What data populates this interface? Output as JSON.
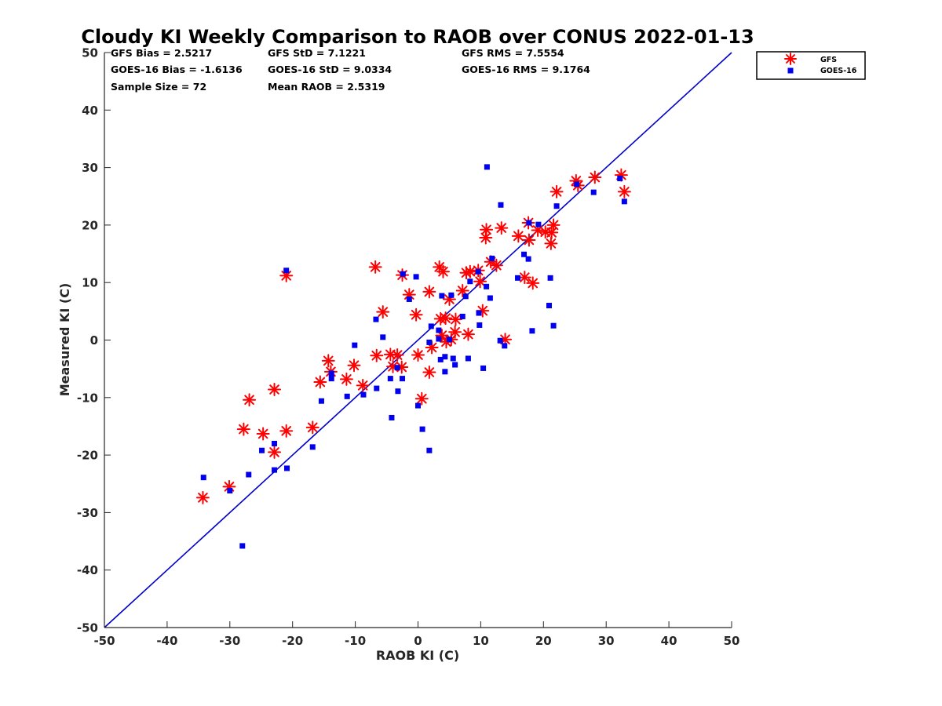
{
  "chart_data": {
    "type": "scatter",
    "title": "Cloudy KI Weekly Comparison to RAOB over CONUS 2022-01-13",
    "xlabel": "RAOB KI (C)",
    "ylabel": "Measured KI (C)",
    "xlim": [
      -50,
      50
    ],
    "ylim": [
      -50,
      50
    ],
    "xticks": [
      -50,
      -40,
      -30,
      -20,
      -10,
      0,
      10,
      20,
      30,
      40,
      50
    ],
    "yticks": [
      -50,
      -40,
      -30,
      -20,
      -10,
      0,
      10,
      20,
      30,
      40,
      50
    ],
    "reference_line": {
      "name": "1:1 line",
      "x": [
        -50,
        50
      ],
      "y": [
        -50,
        50
      ],
      "color": "#0000cc"
    },
    "stats": {
      "gfs_bias": "GFS Bias = 2.5217",
      "goes_bias": "GOES-16 Bias = -1.6136",
      "sample_size": "Sample Size = 72",
      "gfs_std": "GFS StD = 7.1221",
      "goes_std": "GOES-16 StD = 9.0334",
      "mean_raob": "Mean RAOB = 2.5319",
      "gfs_rms": "GFS RMS = 7.5554",
      "goes_rms": "GOES-16 RMS = 9.1764"
    },
    "legend": {
      "placement": "top-right",
      "entries": [
        "GFS",
        "GOES-16"
      ]
    },
    "series": [
      {
        "name": "GFS",
        "marker": "asterisk",
        "color": "#ff0000",
        "points": [
          [
            -34.3,
            -27.4
          ],
          [
            -30.1,
            -25.5
          ],
          [
            -27.8,
            -15.5
          ],
          [
            -26.9,
            -10.4
          ],
          [
            -24.7,
            -16.3
          ],
          [
            -22.9,
            -8.6
          ],
          [
            -22.9,
            -19.5
          ],
          [
            -21,
            -15.8
          ],
          [
            -21,
            11.2
          ],
          [
            -16.8,
            -15.2
          ],
          [
            -15.6,
            -7.3
          ],
          [
            -14.3,
            -3.6
          ],
          [
            -13.9,
            -5.5
          ],
          [
            -11.4,
            -6.8
          ],
          [
            -10.2,
            -4.4
          ],
          [
            -8.8,
            -7.9
          ],
          [
            -6.8,
            12.7
          ],
          [
            -6.6,
            -2.7
          ],
          [
            -5.6,
            4.9
          ],
          [
            -4.4,
            -2.5
          ],
          [
            -4,
            -4.6
          ],
          [
            -3.3,
            -2.6
          ],
          [
            -2.6,
            -4.7
          ],
          [
            -2.5,
            11.3
          ],
          [
            -1.4,
            7.9
          ],
          [
            -0.3,
            4.4
          ],
          [
            0,
            -2.6
          ],
          [
            0.6,
            -10.2
          ],
          [
            1.8,
            8.4
          ],
          [
            1.8,
            -5.6
          ],
          [
            2.2,
            -1.3
          ],
          [
            3.4,
            12.7
          ],
          [
            3.6,
            3.7
          ],
          [
            3.8,
            0.8
          ],
          [
            4,
            11.9
          ],
          [
            4.4,
            3.8
          ],
          [
            4.5,
            -0.3
          ],
          [
            5,
            7.1
          ],
          [
            5.3,
            0.1
          ],
          [
            5.9,
            1.4
          ],
          [
            6,
            3.6
          ],
          [
            7.1,
            8.6
          ],
          [
            7.7,
            11.7
          ],
          [
            8,
            1
          ],
          [
            8.3,
            11.9
          ],
          [
            9.6,
            12.1
          ],
          [
            9.9,
            10.2
          ],
          [
            10.3,
            5.1
          ],
          [
            10.8,
            17.8
          ],
          [
            10.9,
            19.2
          ],
          [
            11.6,
            13.6
          ],
          [
            12.5,
            13
          ],
          [
            13.3,
            19.5
          ],
          [
            13.9,
            0.1
          ],
          [
            16,
            18.1
          ],
          [
            17,
            10.9
          ],
          [
            17.6,
            20.4
          ],
          [
            17.7,
            17.4
          ],
          [
            18.3,
            9.9
          ],
          [
            19.1,
            19.1
          ],
          [
            20.3,
            18.8
          ],
          [
            21.2,
            16.8
          ],
          [
            21.3,
            18.7
          ],
          [
            21.6,
            20
          ],
          [
            22.1,
            25.8
          ],
          [
            25.2,
            27.7
          ],
          [
            25.5,
            26.9
          ],
          [
            28.2,
            28.3
          ],
          [
            32.4,
            28.7
          ],
          [
            32.9,
            25.8
          ]
        ]
      },
      {
        "name": "GOES-16",
        "marker": "square",
        "color": "#0000ee",
        "points": [
          [
            -34.2,
            -23.9
          ],
          [
            -30,
            -26.2
          ],
          [
            -28,
            -35.8
          ],
          [
            -27,
            -23.4
          ],
          [
            -24.9,
            -19.2
          ],
          [
            -22.9,
            -22.6
          ],
          [
            -22.9,
            -18
          ],
          [
            -21,
            12.1
          ],
          [
            -20.9,
            -22.3
          ],
          [
            -16.8,
            -18.6
          ],
          [
            -15.4,
            -10.6
          ],
          [
            -13.8,
            -6.7
          ],
          [
            -13.8,
            -5.8
          ],
          [
            -11.3,
            -9.8
          ],
          [
            -10.1,
            -0.9
          ],
          [
            -8.7,
            -9.5
          ],
          [
            -6.7,
            3.6
          ],
          [
            -6.6,
            -8.4
          ],
          [
            -5.6,
            0.5
          ],
          [
            -4.4,
            -6.7
          ],
          [
            -4.2,
            -13.5
          ],
          [
            -3.3,
            -4.8
          ],
          [
            -3.2,
            -8.9
          ],
          [
            -2.5,
            -6.7
          ],
          [
            -2.4,
            11.5
          ],
          [
            -1.4,
            7.1
          ],
          [
            -0.3,
            11
          ],
          [
            0,
            -11.4
          ],
          [
            0.7,
            -15.5
          ],
          [
            1.8,
            -19.2
          ],
          [
            1.8,
            -0.4
          ],
          [
            2.1,
            2.4
          ],
          [
            3.3,
            0.2
          ],
          [
            3.3,
            1.7
          ],
          [
            3.6,
            -3.4
          ],
          [
            3.8,
            7.7
          ],
          [
            4.3,
            -2.9
          ],
          [
            4.3,
            -5.5
          ],
          [
            5,
            0.1
          ],
          [
            5.3,
            7.8
          ],
          [
            5.6,
            -3.2
          ],
          [
            5.9,
            -4.3
          ],
          [
            7.1,
            4.1
          ],
          [
            7.6,
            7.6
          ],
          [
            8,
            -3.2
          ],
          [
            8.3,
            10.2
          ],
          [
            9.6,
            11.9
          ],
          [
            9.7,
            4.7
          ],
          [
            9.8,
            2.6
          ],
          [
            10.4,
            -4.9
          ],
          [
            10.9,
            9.3
          ],
          [
            11,
            30.1
          ],
          [
            11.5,
            7.3
          ],
          [
            11.8,
            14.2
          ],
          [
            13.1,
            -0.1
          ],
          [
            13.2,
            23.5
          ],
          [
            13.8,
            -1
          ],
          [
            15.9,
            10.8
          ],
          [
            16.9,
            14.9
          ],
          [
            17.6,
            14.1
          ],
          [
            17.7,
            20.4
          ],
          [
            18.2,
            1.6
          ],
          [
            19.2,
            20.1
          ],
          [
            20.9,
            6
          ],
          [
            21.1,
            10.8
          ],
          [
            21.6,
            2.5
          ],
          [
            22.1,
            23.3
          ],
          [
            25.3,
            27.1
          ],
          [
            28,
            25.7
          ],
          [
            32.2,
            28.1
          ],
          [
            32.9,
            24.1
          ]
        ]
      }
    ]
  }
}
